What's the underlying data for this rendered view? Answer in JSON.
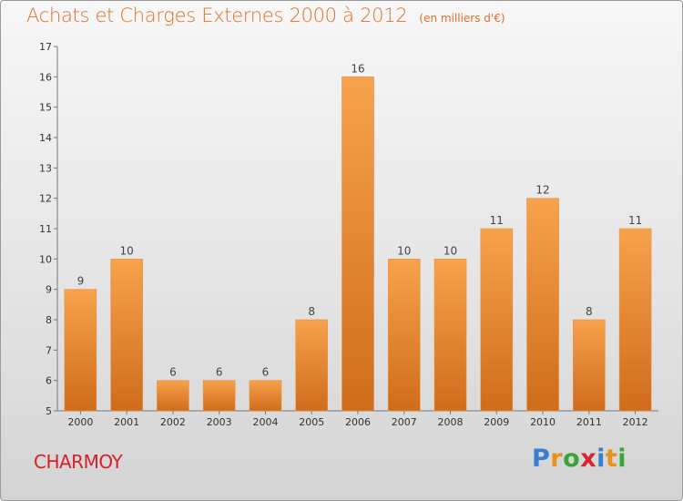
{
  "header": {
    "title": "Achats et Charges Externes 2000 à 2012",
    "unit": "(en milliers d'€)"
  },
  "footer": {
    "town": "CHARMOY",
    "logo_letters": [
      "P",
      "r",
      "o",
      "x",
      "i",
      "t",
      "i"
    ],
    "logo_colors": [
      "#3a7fcf",
      "#e8931c",
      "#3aa53a",
      "#d8262c",
      "#3a7fcf",
      "#e8931c",
      "#3aa53a"
    ]
  },
  "colors": {
    "bar_top": "#f7a24c",
    "bar_bottom": "#cf6c1c",
    "title": "#e0702a",
    "town": "#d6202c"
  },
  "chart_data": {
    "type": "bar",
    "title": "Achats et Charges Externes 2000 à 2012",
    "subtitle": "(en milliers d'€)",
    "categories": [
      "2000",
      "2001",
      "2002",
      "2003",
      "2004",
      "2005",
      "2006",
      "2007",
      "2008",
      "2009",
      "2010",
      "2011",
      "2012"
    ],
    "values": [
      9,
      10,
      6,
      6,
      6,
      8,
      16,
      10,
      10,
      11,
      12,
      8,
      11
    ],
    "ylim": [
      5,
      17
    ],
    "yticks": [
      5,
      6,
      7,
      8,
      9,
      10,
      11,
      12,
      13,
      14,
      15,
      16,
      17
    ],
    "grid": false,
    "legend": "none"
  }
}
